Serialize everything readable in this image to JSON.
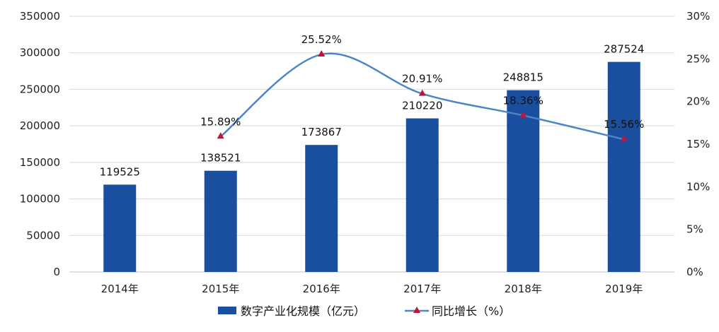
{
  "chart_data": {
    "type": "bar",
    "categories": [
      "2014年",
      "2015年",
      "2016年",
      "2017年",
      "2018年",
      "2019年"
    ],
    "series": [
      {
        "name": "数字产业化规模（亿元）",
        "type": "bar",
        "axis": "left",
        "values": [
          119525,
          138521,
          173867,
          210220,
          248815,
          287524
        ],
        "labels": [
          "119525",
          "138521",
          "173867",
          "210220",
          "248815",
          "287524"
        ],
        "color": "#1a4fa0"
      },
      {
        "name": "同比增长（%）",
        "type": "line",
        "axis": "right",
        "values": [
          null,
          15.89,
          25.52,
          20.91,
          18.36,
          15.56
        ],
        "labels": [
          "",
          "15.89%",
          "25.52%",
          "20.91%",
          "18.36%",
          "15.56%"
        ],
        "color": "#4a86c8",
        "marker": "triangle",
        "marker_color": "#c0143c",
        "smooth": true
      }
    ],
    "y_left": {
      "min": 0,
      "max": 350000,
      "ticks": [
        0,
        50000,
        100000,
        150000,
        200000,
        250000,
        300000,
        350000
      ],
      "tick_labels": [
        "0",
        "50000",
        "100000",
        "150000",
        "200000",
        "250000",
        "300000",
        "350000"
      ]
    },
    "y_right": {
      "min": 0,
      "max": 30,
      "ticks": [
        0,
        5,
        10,
        15,
        20,
        25,
        30
      ],
      "tick_labels": [
        "0%",
        "5%",
        "10%",
        "15%",
        "20%",
        "25%",
        "30%"
      ]
    },
    "grid": true,
    "legend_position": "bottom"
  }
}
